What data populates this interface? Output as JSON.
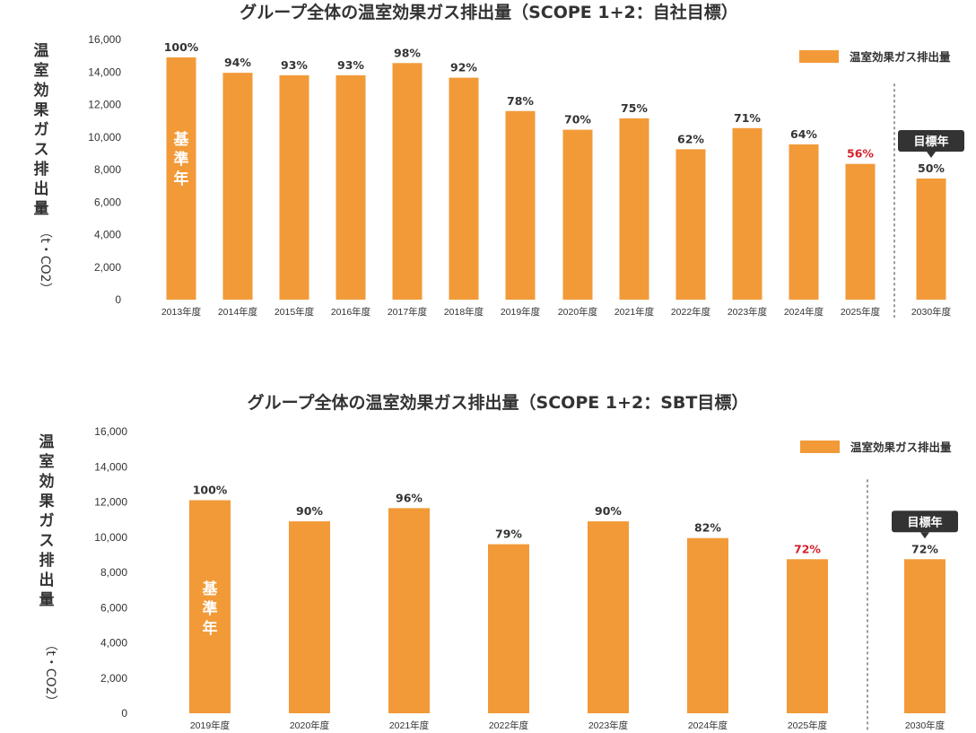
{
  "chart_data": [
    {
      "type": "bar",
      "title": "グループ全体の温室効果ガス排出量（SCOPE 1+2：自社目標）",
      "ylabel_main": [
        "温",
        "室",
        "効",
        "果",
        "ガ",
        "ス",
        "排",
        "出",
        "量"
      ],
      "ylabel_unit": "（t・CO2）",
      "ylim": [
        0,
        16000
      ],
      "yticks": [
        "16,000",
        "14,000",
        "12,000",
        "10,000",
        "8,000",
        "6,000",
        "4,000",
        "2,000",
        "0"
      ],
      "categories": [
        "2013年度",
        "2014年度",
        "2015年度",
        "2016年度",
        "2017年度",
        "2018年度",
        "2019年度",
        "2020年度",
        "2021年度",
        "2022年度",
        "2023年度",
        "2024年度",
        "2025年度",
        "2030年度"
      ],
      "series": [
        {
          "name": "温室効果ガス排出量",
          "values": [
            14900,
            13950,
            13800,
            13800,
            14550,
            13650,
            11600,
            10450,
            11150,
            9250,
            10550,
            9550,
            8350,
            7450
          ],
          "labels": [
            "100%",
            "94%",
            "93%",
            "93%",
            "98%",
            "92%",
            "78%",
            "70%",
            "75%",
            "62%",
            "71%",
            "64%",
            "56%",
            "50%"
          ]
        }
      ],
      "highlight_index": 12,
      "base_year_label": [
        "基",
        "準",
        "年"
      ],
      "target_label": "目標年",
      "color": "#F29A38",
      "highlight_color": "#D7202C",
      "legend_position": "top-right"
    },
    {
      "type": "bar",
      "title": "グループ全体の温室効果ガス排出量（SCOPE 1+2：SBT目標）",
      "ylabel_main": [
        "温",
        "室",
        "効",
        "果",
        "ガ",
        "ス",
        "排",
        "出",
        "量"
      ],
      "ylabel_unit": "（t・CO2）",
      "ylim": [
        0,
        16000
      ],
      "yticks": [
        "16,000",
        "14,000",
        "12,000",
        "10,000",
        "8,000",
        "6,000",
        "4,000",
        "2,000",
        "0"
      ],
      "categories": [
        "2019年度",
        "2020年度",
        "2021年度",
        "2022年度",
        "2023年度",
        "2024年度",
        "2025年度",
        "2030年度"
      ],
      "series": [
        {
          "name": "温室効果ガス排出量",
          "values": [
            12100,
            10900,
            11650,
            9600,
            10900,
            9950,
            8750,
            8750
          ],
          "labels": [
            "100%",
            "90%",
            "96%",
            "79%",
            "90%",
            "82%",
            "72%",
            "72%"
          ]
        }
      ],
      "highlight_index": 6,
      "base_year_label": [
        "基",
        "準",
        "年"
      ],
      "target_label": "目標年",
      "color": "#F29A38",
      "highlight_color": "#D7202C",
      "legend_position": "top-right"
    }
  ]
}
